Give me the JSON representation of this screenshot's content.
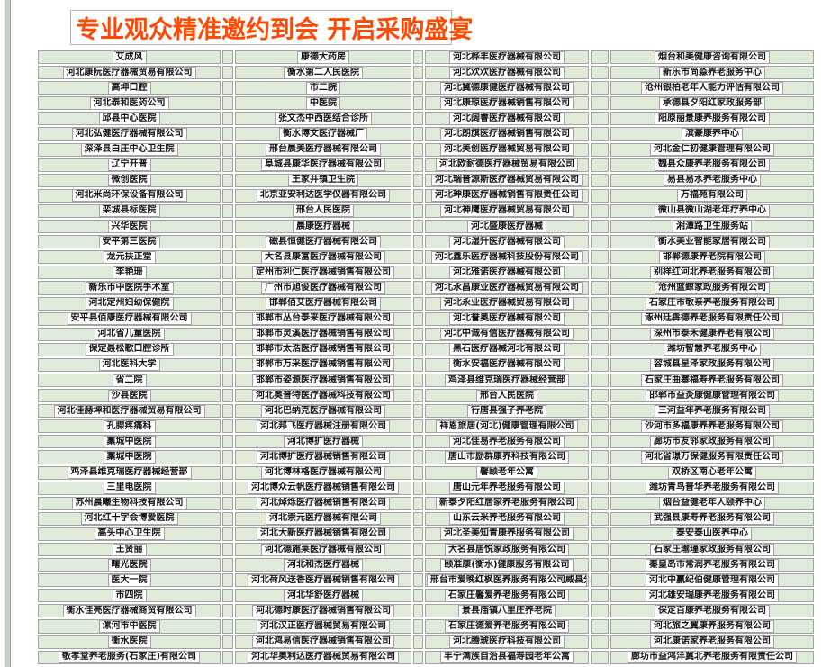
{
  "title": "专业观众精准邀约到会  开启采购盛宴",
  "colors": {
    "title_text": "#fd4a03",
    "cell_background": "#ddebd8",
    "cell_border": "#a3a3a3"
  },
  "table": {
    "columns": [
      [
        "艾成风",
        "河北康阮医疗器械贸易有限公司",
        "高坤口腔",
        "河北泰和医药公司",
        "邱县中心医院",
        "河北弘健医疗器械有限公司",
        "深泽县白庄中心卫生院",
        "辽宁开普",
        "微创医院",
        "河北米尚环保设备有限公司",
        "栾城县标医院",
        "兴华医院",
        "安平第三医院",
        "龙元扶正堂",
        "李艳珊",
        "新乐市中医院手术室",
        "河北定州妇幼保健院",
        "安平县佰康医疗器械有限公司",
        "河北省儿童医院",
        "保定聂松歌口腔诊所",
        "河北医科大学",
        "省二院",
        "沙县医院",
        "河北佳赫坤和医疗器械贸易有限公司",
        "孔腺疼痛科",
        "藁城中医院",
        "藁城中医院",
        "鸡泽县维克瑞医疗器械经营部",
        "三里电医院",
        "苏州晨曦生物科技有限公司",
        "河北红十字会博爱医院",
        "高头中心卫生院",
        "王贤丽",
        "曙光医院",
        "医大一院",
        "市四院",
        "衡水佳亮医疗器械商贸有限公司",
        "漯河市中医院",
        "衡水医院",
        "敬孝堂养老服务(石家庄)有限公司"
      ],
      [
        "康德大药房",
        "衡水第二人民医院",
        "市二院",
        "中医院",
        "张文杰中西医结合诊所",
        "衡水博文医疗器械厂",
        "邢台晨美医疗器械有限公司",
        "阜城县康华医疗器械有限公司",
        "王家井镇卫生院",
        "北京亚安利达医学仪器有限公司",
        "邢台人民医院",
        "晨康医疗器械",
        "磁县恒健医疗器械有限公司",
        "大名县康富医疗器械有限公司",
        "定州市利仁医疗器械销售有限公司",
        "广州市旭俊医疗器械有限公司",
        "邯郸佰艾医疗器械有限公司",
        "邯郸市丛台泰来医疗器械有限公司",
        "邯郸市灵溪医疗器械销售有限公司",
        "邯郸市太浩医疗器械销售有限公司",
        "邯郸市万采医疗器械销售有限公司",
        "邯郸市姿源医疗器械销售有限公司",
        "河北奥普特医疗器械科技有限公司",
        "河北巴纳克医疗器械有限公司",
        "河北邦飞医疗器械注册有限公司",
        "河北博扩医疗器械",
        "河北博扩医疗器械销售有限公司",
        "河北博林格医疗器械有限公司",
        "河北博众云帆医疗器械销售有限公司",
        "河北焯烁医疗器械销售有限公司",
        "河北崇元医疗器械有限公司",
        "河北大新医疗器械销售有限公司",
        "河北德施莱医疗器械有限公司",
        "河北和杰医疗器械",
        "河北荷风送香医疗器械销售有限公司",
        "河北华舒医疗器械",
        "河北德时康医疗器械销售有限公司",
        "河北汉正医疗器械贸易有限公司",
        "河北鸿易信医疗器械销售有限公司",
        "河北华奥利达医疗器械贸易有限公司"
      ],
      [
        "河北桦丰医疗器械有限公司",
        "河北欢欢医疗器械有限公司",
        "河北冀德康健医疗器械有限公司",
        "河北康琼医疗器械销售有限公司",
        "河北阔睿医疗器械有限公司",
        "河北朗旗医疗器械销售有限公司",
        "河北美创医疗器械贸易有限公司",
        "河北欧耐德医疗器械贸易有限公司",
        "河北瑞普源斯医疗器械贸易有限公司",
        "河北珅康医疗器械销售有限责任公司",
        "河北神鹰医疗器械贸易有限公司",
        "河北盛康医疗器械",
        "河北湿升医疗器械有限公司",
        "河北鑫乐医疗器械科技股份有限公司",
        "河北雅诺医疗器械有限公司",
        "河北永昌康业医疗器械贸易有限公司",
        "河北永业医疗器械贸易有限公司",
        "河北誉奥医疗器械有限公司",
        "河北中诚有信医疗器械有限公司",
        "黑石医疗器械河北有限公司",
        "衡水安福医疗器械有限公司",
        "鸡泽县维克瑞医疗器械经营部",
        "邢台人民医院",
        "行唐县强子养老院",
        "祥恩旅居(河北)健康管理有限公司",
        "河北佳易养老服务有限公司",
        "唐山市励群康养科技有限公司",
        "馨颐老年公寓",
        "唐山元年养老服务有限公司",
        "新泰夕阳红居家养老服务有限公司",
        "山东云米养老服务有限公司",
        "河北圣美知青康养服务有限公司",
        "大名县居悦家政服务有限公司",
        "颐准康(衡水)健康服务有限公司",
        "邢台市爱晚红枫医养服务有限公司威县分公司",
        "石家庄馨爱养老服务有限公司",
        "景县庙镇八里庄养老院",
        "石家庄德爱养老服务有限公司",
        "河北腾琥医疗科技有限公司",
        "丰宁满族自治县福寿园老年公寓"
      ],
      [
        "烟台和美健康咨询有限公司",
        "新乐市尚淼养老服务中心",
        "沧州银柏老年人能力评估有限公司",
        "承德县夕阳红家政服务部",
        "阳原丽景康养服务有限公司",
        "滨豪康养中心",
        "河北金仁初健康管理有限公司",
        "魏县众康养老服务有限公司",
        "易县易水养老服务中心",
        "万福苑有限公司",
        "微山县微山湖老年疗养中心",
        "湘潭路卫生服务站",
        "衡水美业智能家居有限公司",
        "邯郸德康养老院有限公司",
        "别样红河北养老服务有限公司",
        "沧州蓝鲸家政服务有限公司",
        "石家庄市敬亲养老服务有限公司",
        "涿州廷犇德养老服务有限责任公司",
        "深州市泰禾健康养老有限公司",
        "潍坊智慧养老服务中心",
        "容城县星泽家政服务有限公司",
        "石家庄曲寨福寿养老服务有限公司",
        "邯郸市益灸康健康管理有限公司",
        "三河益年养老服务有限公司",
        "沙河市多福康养养老服务有限公司",
        "廊坊市友邻家政服务有限公司",
        "河北省璟万保健服务有限责任公司",
        "双桥区南心老年公寓",
        "潍坊青鸟普华养老服务有限公司",
        "烟台益健老年人颐养中心",
        "武强县康寿养老服务有限公司",
        "泰安泰山医养中心",
        "石家庄瑜瑾家政服务有限公司",
        "秦皇岛市常润养老服务有限公司",
        "河北中赢纪伯健康管理有限公司",
        "河北雄安瑞康养老服务有限公司",
        "保定百康养老服务有限公司",
        "河北旅之翼康养服务有限公司",
        "河北康诺家养老服务有限公司",
        "廊坊市益鸿洋冀北养老服务有限责任公司"
      ]
    ]
  }
}
